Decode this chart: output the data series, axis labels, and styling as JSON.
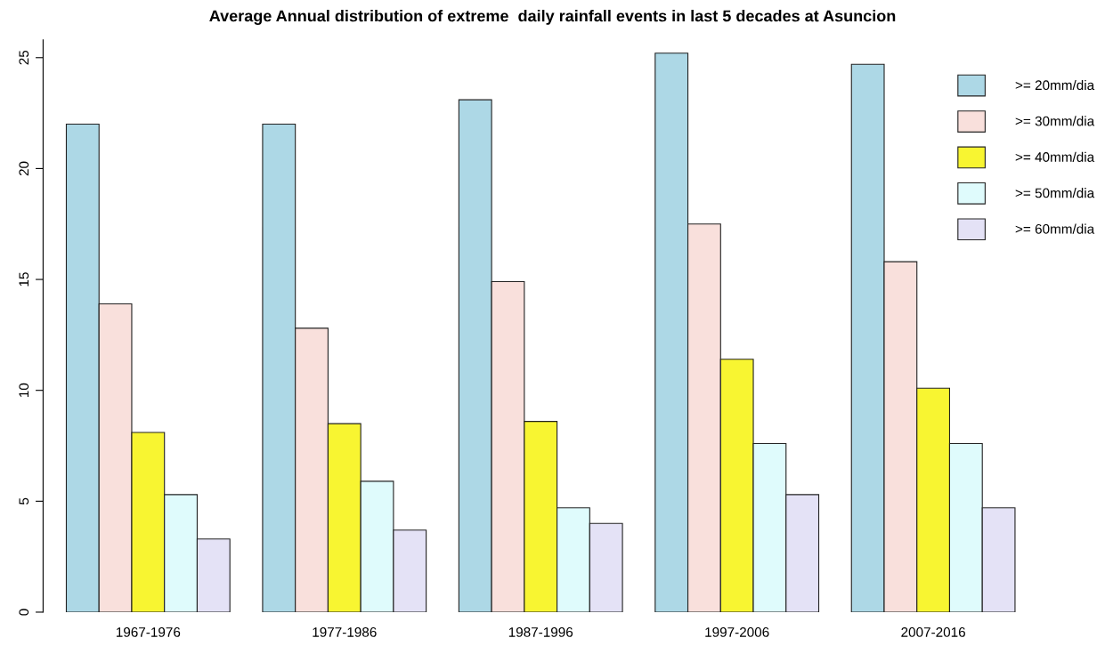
{
  "chart_data": {
    "type": "bar",
    "title": "Average Annual distribution of extreme  daily rainfall events in last 5 decades at Asuncion",
    "categories": [
      "1967-1976",
      "1977-1986",
      "1987-1996",
      "1997-2006",
      "2007-2016"
    ],
    "series": [
      {
        "name": ">= 20mm/dia",
        "color": "#add8e6",
        "values": [
          22.0,
          22.0,
          23.1,
          25.2,
          24.7
        ]
      },
      {
        "name": ">= 30mm/dia",
        "color": "#f9e0dc",
        "values": [
          13.9,
          12.8,
          14.9,
          17.5,
          15.8
        ]
      },
      {
        "name": ">= 40mm/dia",
        "color": "#f8f531",
        "values": [
          8.1,
          8.5,
          8.6,
          11.4,
          10.1
        ]
      },
      {
        "name": ">= 50mm/dia",
        "color": "#dffbfc",
        "values": [
          5.3,
          5.9,
          4.7,
          7.6,
          7.6
        ]
      },
      {
        "name": ">= 60mm/dia",
        "color": "#e4e2f6",
        "values": [
          3.3,
          3.7,
          4.0,
          5.3,
          4.7
        ]
      }
    ],
    "ylim": [
      0,
      25.8
    ],
    "yticks": [
      0,
      5,
      10,
      15,
      20,
      25
    ],
    "legend": "top right",
    "grid": false
  }
}
